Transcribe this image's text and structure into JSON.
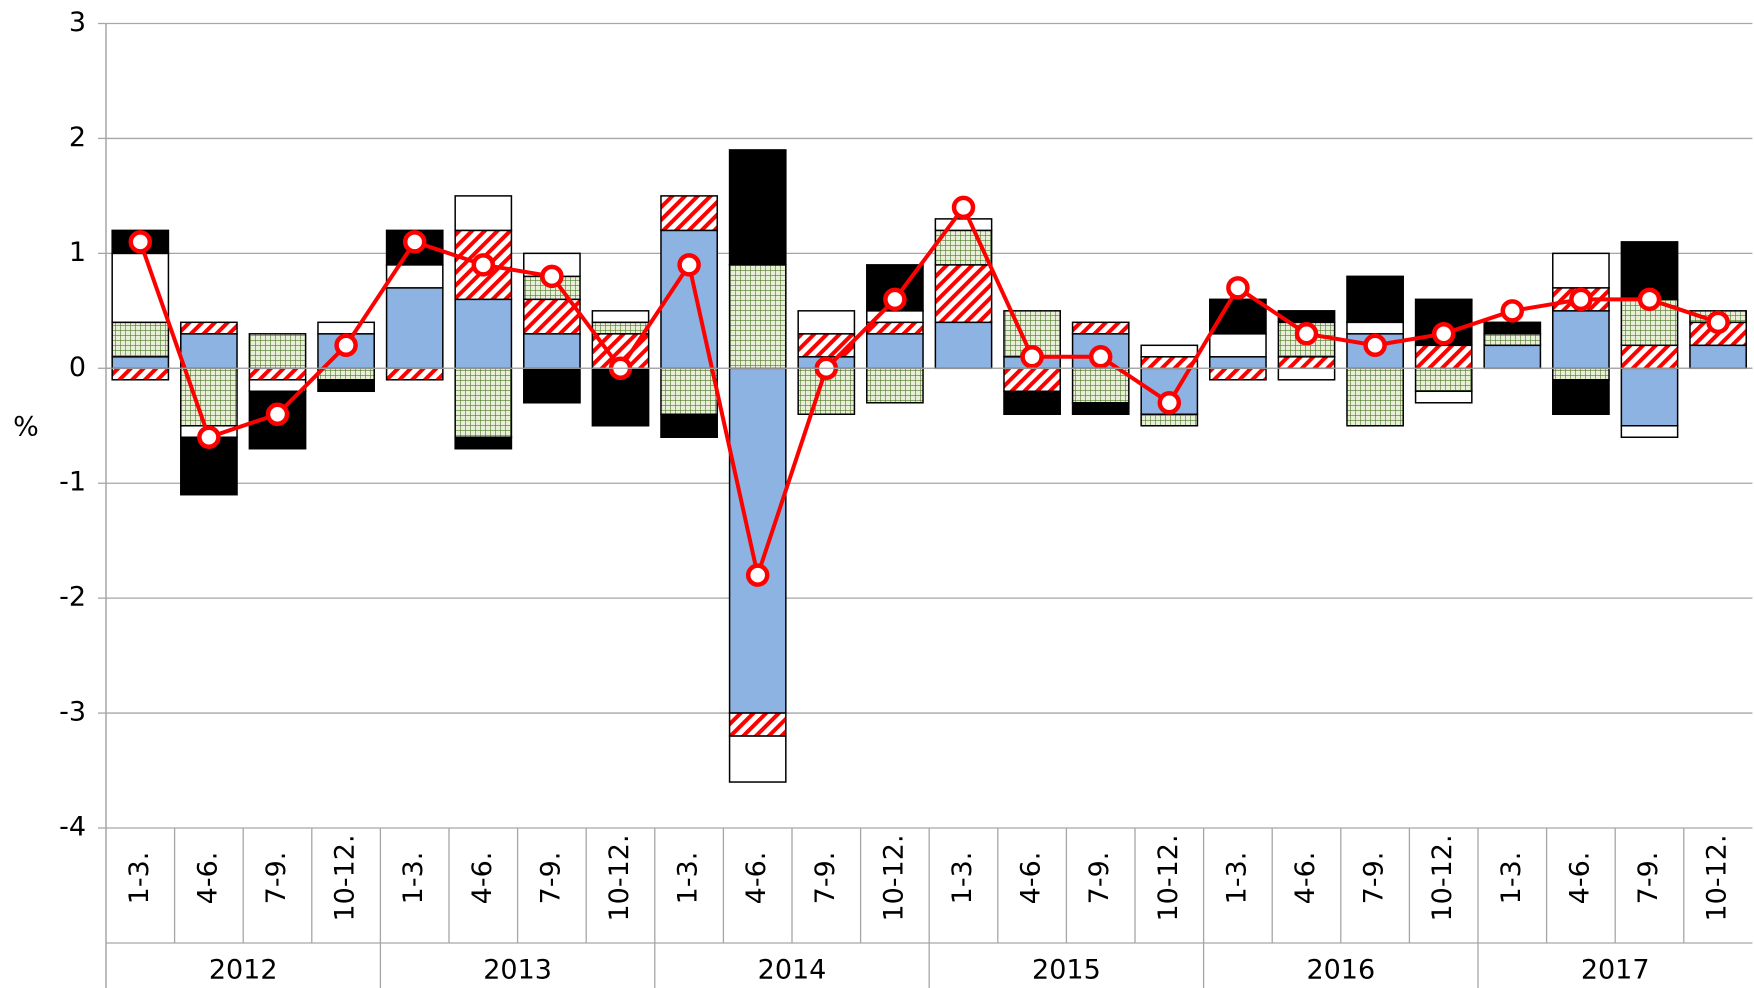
{
  "chart_data": {
    "type": "bar",
    "stacked": true,
    "y_label": "%",
    "categories": [
      "1‐3.",
      "4‐6.",
      "7‐9.",
      "10‐12.",
      "1‐3.",
      "4‐6.",
      "7‐9.",
      "10‐12.",
      "1‐3.",
      "4‐6.",
      "7‐9.",
      "10‐12.",
      "1‐3.",
      "4‐6.",
      "7‐9.",
      "10‐12.",
      "1‐3.",
      "4‐6.",
      "7‐9.",
      "10‐12.",
      "1‐3.",
      "4‐6.",
      "7‐9.",
      "10‐12."
    ],
    "groups": [
      "2012",
      "2013",
      "2014",
      "2015",
      "2016",
      "2017"
    ],
    "series": [
      {
        "color": "#8db3e2",
        "pattern": "solid",
        "values": [
          0.1,
          0.3,
          0,
          0.3,
          0.7,
          0.6,
          0.3,
          0,
          1.2,
          -3.0,
          0.1,
          0.3,
          0.4,
          0.1,
          0.3,
          -0.4,
          0.1,
          0,
          0.3,
          0,
          0.2,
          0.5,
          -0.5,
          0.2
        ]
      },
      {
        "color": "#ff0000",
        "pattern": "hatch",
        "values": [
          -0.1,
          0.1,
          -0.1,
          0,
          -0.1,
          0.6,
          0.3,
          0.3,
          0.3,
          -0.2,
          0.2,
          0.1,
          0.5,
          -0.2,
          0.1,
          0.1,
          -0.1,
          0.1,
          0,
          0.2,
          0,
          0.2,
          0.2,
          0.2
        ]
      },
      {
        "color": "#4f7a28",
        "pattern": "grid",
        "values": [
          0.3,
          -0.5,
          0.3,
          -0.1,
          0,
          -0.6,
          0.2,
          0.1,
          -0.4,
          0.9,
          -0.4,
          -0.3,
          0.3,
          0.4,
          -0.3,
          -0.1,
          0,
          0.3,
          -0.5,
          -0.2,
          0.1,
          -0.1,
          0.4,
          0.1
        ]
      },
      {
        "color": "#ffffff",
        "pattern": "solid",
        "values": [
          0.6,
          -0.1,
          -0.1,
          0.1,
          0.2,
          0.3,
          0.2,
          0.1,
          0,
          -0.4,
          0.2,
          0.1,
          0.1,
          0,
          0,
          0.1,
          0.2,
          -0.1,
          0.1,
          -0.1,
          0,
          0.3,
          -0.1,
          0
        ]
      },
      {
        "color": "#000000",
        "pattern": "solid",
        "values": [
          0.2,
          -0.5,
          -0.5,
          -0.1,
          0.3,
          -0.1,
          -0.3,
          -0.5,
          -0.2,
          1.0,
          0,
          0.4,
          0,
          -0.2,
          -0.1,
          0,
          0.3,
          0.1,
          0.4,
          0.4,
          0.1,
          -0.3,
          0.5,
          0
        ]
      },
      {
        "type": "line",
        "color": "#ff0000",
        "values": [
          1.1,
          -0.6,
          -0.4,
          0.2,
          1.1,
          0.9,
          0.8,
          0.0,
          0.9,
          -1.8,
          0.0,
          0.6,
          1.4,
          0.1,
          0.1,
          -0.3,
          0.7,
          0.3,
          0.2,
          0.3,
          0.5,
          0.6,
          0.6,
          0.4
        ]
      }
    ],
    "ylim": [
      -4,
      3
    ],
    "yticks": [
      -4,
      -3,
      -2,
      -1,
      0,
      1,
      2,
      3
    ],
    "grid": true
  }
}
